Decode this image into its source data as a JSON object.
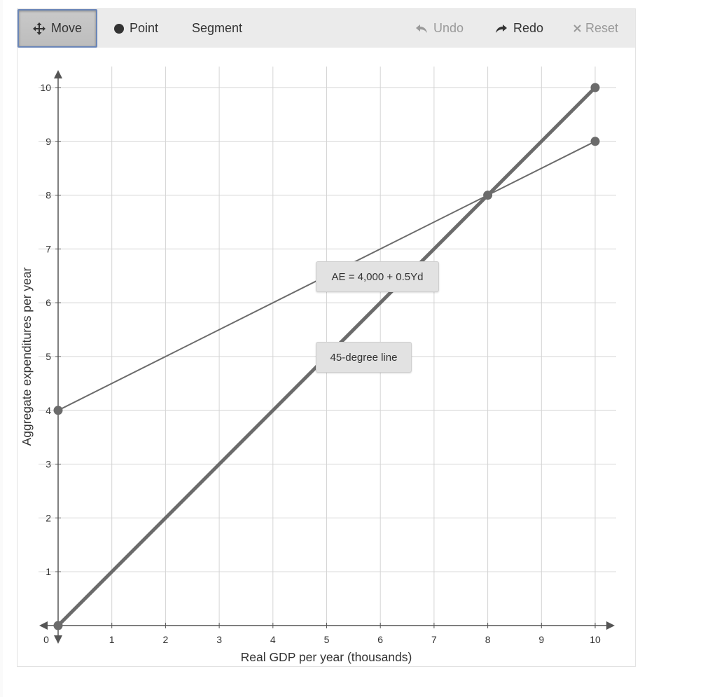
{
  "toolbar": {
    "move_label": "Move",
    "point_label": "Point",
    "segment_label": "Segment",
    "undo_label": "Undo",
    "redo_label": "Redo",
    "reset_label": "Reset",
    "active_tool": "Move",
    "disabled_tools": [
      "Undo",
      "Reset"
    ]
  },
  "icons": {
    "move": "move-arrows-icon",
    "point": "filled-circle-icon",
    "undo": "undo-arrow-icon",
    "redo": "redo-arrow-icon",
    "reset": "x-icon"
  },
  "colors": {
    "line": "#6b6b6b",
    "grid": "#d4d4d4",
    "toolbar_bg": "#ebebeb",
    "active_border": "#6a86b8"
  },
  "chart_data": {
    "type": "line",
    "xlabel": "Real GDP per year (thousands)",
    "ylabel": "Aggregate expenditures per year",
    "xlim": [
      0,
      10
    ],
    "ylim": [
      0,
      10
    ],
    "x_ticks": [
      "0",
      "1",
      "2",
      "3",
      "4",
      "5",
      "6",
      "7",
      "8",
      "9",
      "10"
    ],
    "y_ticks": [
      "1",
      "2",
      "3",
      "4",
      "5",
      "6",
      "7",
      "8",
      "9",
      "10"
    ],
    "grid": true,
    "series": [
      {
        "name": "45-degree line",
        "points": [
          [
            0,
            0
          ],
          [
            10,
            10
          ]
        ],
        "weight": "thick"
      },
      {
        "name": "AE = 4,000 + 0.5Yd",
        "points": [
          [
            0,
            4
          ],
          [
            8,
            8
          ],
          [
            10,
            9
          ]
        ],
        "weight": "thin"
      }
    ],
    "points": [
      [
        0,
        0
      ],
      [
        8,
        8
      ],
      [
        10,
        10
      ],
      [
        0,
        4
      ],
      [
        10,
        9
      ]
    ],
    "labels": [
      "AE = 4,000 + 0.5Yd",
      "45-degree line"
    ]
  }
}
